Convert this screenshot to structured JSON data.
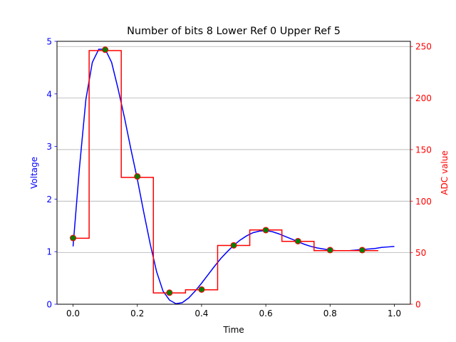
{
  "chart_data": {
    "type": "line",
    "title": "Number of bits 8 Lower Ref 0 Upper Ref 5",
    "xlabel": "Time",
    "ylabel_left": "Voltage",
    "ylabel_right": "ADC value",
    "xlim": [
      -0.05,
      1.05
    ],
    "ylim_left": [
      0,
      5
    ],
    "ylim_right": [
      0,
      255
    ],
    "x_ticks": [
      0.0,
      0.2,
      0.4,
      0.6,
      0.8,
      1.0
    ],
    "x_tick_labels": [
      "0.0",
      "0.2",
      "0.4",
      "0.6",
      "0.8",
      "1.0"
    ],
    "y_left_ticks": [
      0,
      1,
      2,
      3,
      4,
      5
    ],
    "y_left_tick_labels": [
      "0",
      "1",
      "2",
      "3",
      "4",
      "5"
    ],
    "y_right_ticks": [
      0,
      50,
      100,
      150,
      200,
      250
    ],
    "y_right_tick_labels": [
      "0",
      "50",
      "100",
      "150",
      "200",
      "250"
    ],
    "grid": "horizontal (right axis)",
    "colors": {
      "voltage": "#0000ff",
      "adc": "#ff0000",
      "sample_fill": "#008000",
      "sample_edge": "#ff0000",
      "left_axis": "#0000ff",
      "right_axis": "#ff0000"
    },
    "series": [
      {
        "axis": "left",
        "style": "line",
        "x": [
          0.0,
          0.02,
          0.04,
          0.06,
          0.08,
          0.1,
          0.12,
          0.14,
          0.16,
          0.18,
          0.2,
          0.22,
          0.24,
          0.26,
          0.28,
          0.3,
          0.32,
          0.34,
          0.36,
          0.38,
          0.4,
          0.42,
          0.44,
          0.46,
          0.48,
          0.5,
          0.52,
          0.54,
          0.56,
          0.58,
          0.6,
          0.62,
          0.64,
          0.66,
          0.68,
          0.7,
          0.72,
          0.74,
          0.76,
          0.78,
          0.8,
          0.82,
          0.84,
          0.86,
          0.88,
          0.9,
          0.92,
          0.94,
          0.96,
          0.98,
          1.0
        ],
        "values": [
          1.1,
          2.6,
          3.9,
          4.6,
          4.85,
          4.85,
          4.6,
          4.1,
          3.55,
          2.95,
          2.38,
          1.75,
          1.15,
          0.62,
          0.25,
          0.08,
          0.01,
          0.03,
          0.12,
          0.25,
          0.4,
          0.56,
          0.72,
          0.87,
          1.0,
          1.12,
          1.22,
          1.3,
          1.36,
          1.39,
          1.4,
          1.38,
          1.34,
          1.29,
          1.24,
          1.19,
          1.14,
          1.1,
          1.07,
          1.05,
          1.03,
          1.02,
          1.02,
          1.02,
          1.03,
          1.04,
          1.05,
          1.06,
          1.08,
          1.09,
          1.1
        ]
      },
      {
        "axis": "right",
        "style": "step",
        "x": [
          0.0,
          0.1,
          0.2,
          0.3,
          0.4,
          0.5,
          0.6,
          0.7,
          0.8,
          0.9
        ],
        "values": [
          64,
          246,
          123,
          11,
          14,
          57,
          72,
          61,
          52,
          52
        ]
      },
      {
        "axis": "left",
        "style": "markers",
        "x": [
          0.0,
          0.1,
          0.2,
          0.3,
          0.4,
          0.5,
          0.6,
          0.7,
          0.8,
          0.9
        ],
        "values": [
          1.26,
          4.84,
          2.43,
          0.22,
          0.28,
          1.12,
          1.41,
          1.2,
          1.03,
          1.03
        ]
      }
    ]
  }
}
